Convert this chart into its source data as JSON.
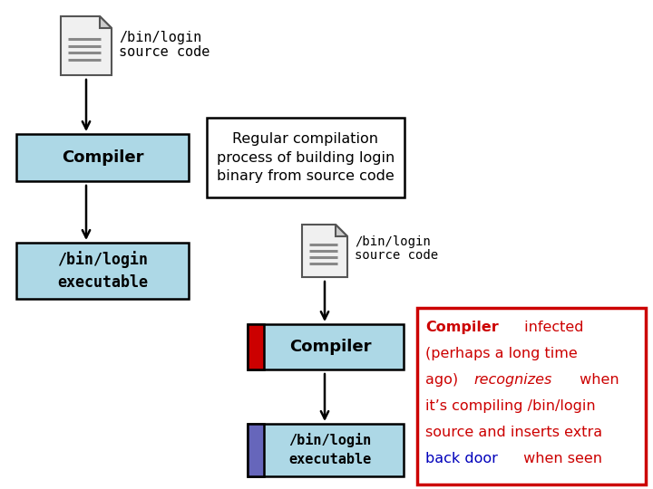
{
  "bg_color": "#ffffff",
  "light_blue": "#add8e6",
  "box_edge": "#000000",
  "red_stripe": "#cc0000",
  "blue_stripe": "#6666bb",
  "doc_fill": "#f0f0f0",
  "doc_fold_fill": "#cccccc",
  "doc_edge": "#555555",
  "doc_line_color": "#888888",
  "text_mono": "monospace",
  "text_sans": "DejaVu Sans",
  "title_text": "Regular compilation\nprocess of building login\nbinary from source code",
  "compiler_label": "Compiler",
  "exec_label": "/bin/login\nexecutable",
  "source_label1": "/bin/login",
  "source_label2": "source code",
  "ann_border": "#cc0000",
  "ann_line1_a_text": "Compiler",
  "ann_line1_a_bold": true,
  "ann_line1_a_color": "#cc0000",
  "ann_line1_b_text": " infected",
  "ann_line1_b_color": "#cc0000",
  "ann_line2_text": "(perhaps a long time",
  "ann_line2_color": "#cc0000",
  "ann_line3_a_text": "ago) ",
  "ann_line3_a_color": "#cc0000",
  "ann_line3_b_text": "recognizes",
  "ann_line3_b_italic": true,
  "ann_line3_b_color": "#cc0000",
  "ann_line3_c_text": " when",
  "ann_line3_c_color": "#cc0000",
  "ann_line4_text": "it’s compiling /bin/login",
  "ann_line4_color": "#cc0000",
  "ann_line5_text": "source and inserts extra",
  "ann_line5_color": "#cc0000",
  "ann_line6_a_text": "back door",
  "ann_line6_a_color": "#0000bb",
  "ann_line6_b_text": " when seen",
  "ann_line6_b_color": "#cc0000",
  "font_size_ann": 11.5,
  "font_size_box": 13,
  "font_size_mono": 10,
  "font_size_title": 11.5
}
